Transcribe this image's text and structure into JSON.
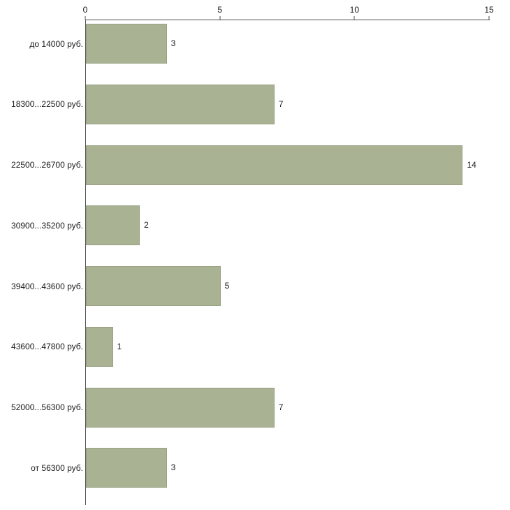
{
  "chart_data": {
    "type": "bar",
    "orientation": "horizontal",
    "title": "",
    "xlabel": "",
    "ylabel": "",
    "categories": [
      "до 14000 руб.",
      "18300...22500 руб.",
      "22500...26700 руб.",
      "30900...35200 руб.",
      "39400...43600 руб.",
      "43600...47800 руб.",
      "52000...56300 руб.",
      "от 56300 руб."
    ],
    "values": [
      3,
      7,
      14,
      2,
      5,
      1,
      7,
      3
    ],
    "x_ticks": [
      0,
      5,
      10,
      15
    ],
    "xlim": [
      0,
      15
    ],
    "grid": false,
    "legend": null,
    "bar_color": "#a9b292",
    "bar_border_color": "#98a183",
    "axis_color": "#4d4d4d",
    "text_color": "#1a1a1a",
    "background": "#ffffff"
  }
}
